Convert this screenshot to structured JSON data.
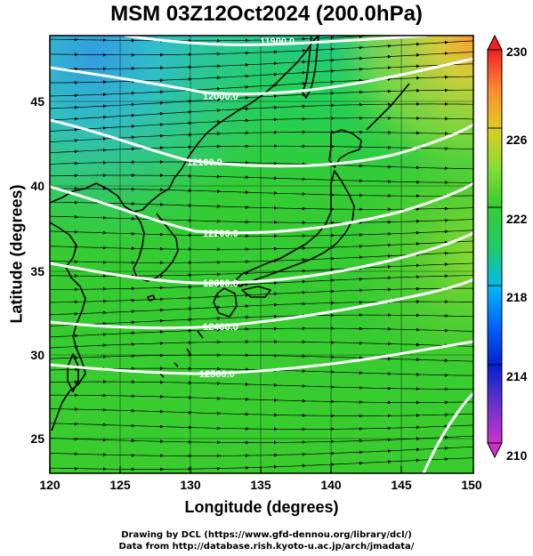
{
  "title": "MSM 03Z12Oct2024 (200.0hPa)",
  "x_axis": {
    "label": "Longitude (degrees)",
    "ticks": [
      "120",
      "125",
      "130",
      "135",
      "140",
      "145",
      "150"
    ]
  },
  "y_axis": {
    "label": "Latitude  (degrees)",
    "ticks": [
      "25",
      "30",
      "35",
      "40",
      "45"
    ]
  },
  "colorbar": {
    "ticks": [
      "210",
      "214",
      "218",
      "222",
      "226",
      "230"
    ],
    "min": 210,
    "max": 230
  },
  "contours": [
    "11900.0",
    "12000.0",
    "12100.0",
    "12200.0",
    "12300.0",
    "12400.0",
    "12500.0"
  ],
  "credits": {
    "line1": "Drawing by DCL (https://www.gfd-dennou.org/library/dcl/)",
    "line2": "Data from http://database.rish.kyoto-u.ac.jp/arch/jmadata/"
  },
  "colors": {
    "field_main": "#33cc33",
    "field_cool": "#33b8e6",
    "field_warm": "#cce033",
    "contour": "#ffffff",
    "coast": "#000000"
  }
}
